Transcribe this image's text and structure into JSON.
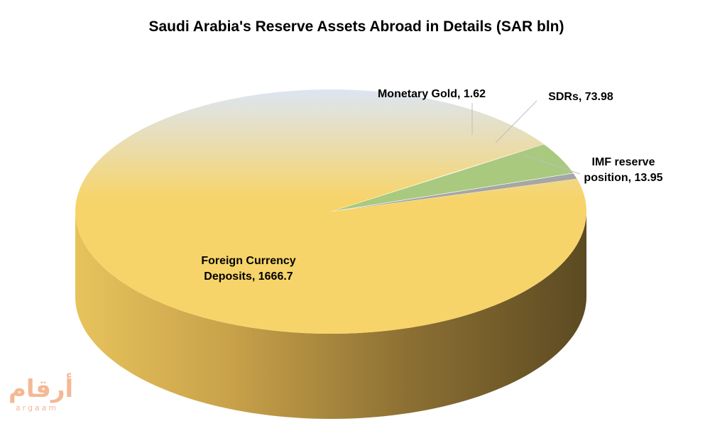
{
  "chart_data": {
    "type": "pie",
    "title": "Saudi Arabia's Reserve Assets Abroad in Details (SAR bln)",
    "slices": [
      {
        "label": "Foreign Currency Deposits",
        "value": 1666.7,
        "data_label_lines": [
          "Foreign Currency",
          "Deposits, 1666.7"
        ],
        "color": "#f7d46a"
      },
      {
        "label": "Monetary Gold",
        "value": 1.62,
        "data_label_lines": [
          "Monetary Gold, 1.62"
        ],
        "color": "#e8a06c"
      },
      {
        "label": "SDRs",
        "value": 73.98,
        "data_label_lines": [
          "SDRs, 73.98"
        ],
        "color": "#a9c97e"
      },
      {
        "label": "IMF reserve position",
        "value": 13.95,
        "data_label_lines": [
          "IMF reserve",
          "position, 13.95"
        ],
        "color": "#a6a6a6"
      }
    ],
    "style": "3d",
    "legend": "none"
  },
  "logo": {
    "arabic": "أرقام",
    "latin": "argaam"
  }
}
